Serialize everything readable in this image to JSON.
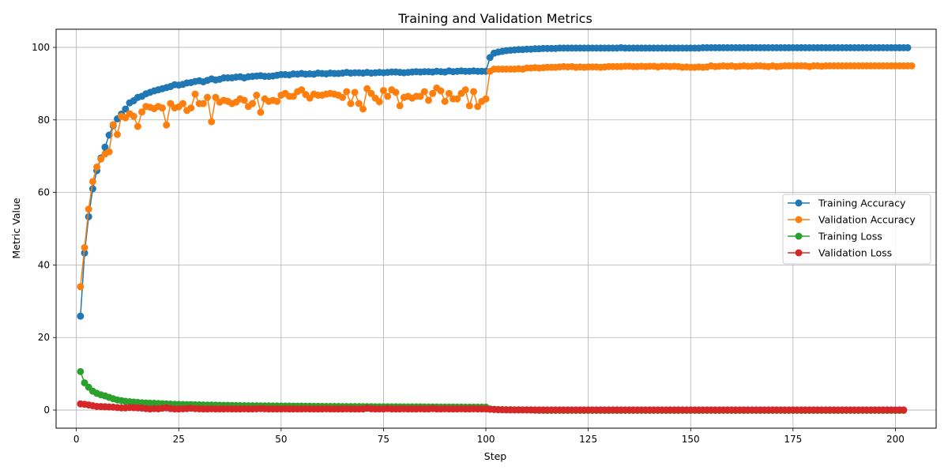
{
  "chart_data": {
    "type": "line",
    "title": "Training and Validation Metrics",
    "xlabel": "Step",
    "ylabel": "Metric Value",
    "xlim": [
      -4.95,
      209.95
    ],
    "ylim": [
      -5,
      105
    ],
    "xticks": [
      0,
      25,
      50,
      75,
      100,
      125,
      150,
      175,
      200
    ],
    "yticks": [
      0,
      20,
      40,
      60,
      80,
      100
    ],
    "grid": true,
    "legend_position": "center-right",
    "x_range": [
      1,
      200
    ],
    "series": [
      {
        "name": "Training Accuracy",
        "color": "#1f77b4",
        "values": [
          25.9,
          43.3,
          53.3,
          61.0,
          66.0,
          69.5,
          72.5,
          75.8,
          78.4,
          80.3,
          81.6,
          83.0,
          84.7,
          85.3,
          86.2,
          86.5,
          87.2,
          87.6,
          88.0,
          88.3,
          88.6,
          88.9,
          89.2,
          89.7,
          89.6,
          89.8,
          90.2,
          90.3,
          90.6,
          90.8,
          90.5,
          90.9,
          91.3,
          91.0,
          91.2,
          91.6,
          91.6,
          91.6,
          91.8,
          91.9,
          91.6,
          91.9,
          92.0,
          92.1,
          92.2,
          92.0,
          92.0,
          92.1,
          92.3,
          92.5,
          92.5,
          92.4,
          92.7,
          92.6,
          92.8,
          92.6,
          92.7,
          92.6,
          92.9,
          92.8,
          92.7,
          92.9,
          92.8,
          92.8,
          92.9,
          93.1,
          92.9,
          93.0,
          93.0,
          92.9,
          93.1,
          92.9,
          93.0,
          93.1,
          93.0,
          93.1,
          93.2,
          93.2,
          93.1,
          93.0,
          93.1,
          93.2,
          93.3,
          93.2,
          93.3,
          93.3,
          93.2,
          93.4,
          93.3,
          93.2,
          93.5,
          93.3,
          93.4,
          93.5,
          93.4,
          93.4,
          93.5,
          93.4,
          93.4,
          93.4,
          97.2,
          98.4,
          98.7,
          98.9,
          99.1,
          99.2,
          99.3,
          99.4,
          99.4,
          99.5,
          99.5,
          99.6,
          99.6,
          99.7,
          99.7,
          99.7,
          99.7,
          99.8,
          99.8,
          99.8,
          99.8,
          99.8,
          99.8,
          99.8,
          99.8,
          99.8,
          99.8,
          99.8,
          99.8,
          99.8,
          99.8,
          99.8,
          99.9,
          99.8,
          99.8,
          99.8,
          99.8,
          99.8,
          99.8,
          99.8,
          99.8,
          99.8,
          99.8,
          99.8,
          99.8,
          99.8,
          99.8,
          99.8,
          99.8,
          99.8,
          99.8,
          99.8,
          99.9,
          99.9,
          99.9,
          99.9,
          99.9,
          99.9,
          99.9,
          99.9,
          99.9,
          99.9,
          99.9,
          99.9,
          99.9,
          99.9,
          99.9,
          99.9,
          99.9,
          99.9,
          99.9,
          99.9,
          99.9,
          99.9,
          99.9,
          99.9,
          99.9,
          99.9,
          99.9,
          99.9,
          99.9,
          99.9,
          99.9,
          99.9,
          99.9,
          99.9,
          99.9,
          99.9,
          99.9,
          99.9,
          99.9,
          99.9,
          99.9,
          99.9,
          99.9,
          99.9,
          99.9,
          99.9,
          99.9,
          99.9,
          99.9,
          99.9,
          99.9
        ]
      },
      {
        "name": "Validation Accuracy",
        "color": "#ff7f0e",
        "values": [
          34.0,
          44.8,
          55.4,
          63.0,
          67.0,
          69.2,
          70.6,
          71.2,
          78.7,
          76.0,
          81.0,
          80.6,
          81.7,
          81.0,
          78.2,
          82.2,
          83.7,
          83.5,
          83.1,
          83.7,
          83.3,
          78.6,
          84.5,
          83.3,
          83.6,
          84.5,
          82.6,
          83.3,
          87.1,
          84.5,
          84.5,
          86.2,
          79.5,
          86.2,
          84.9,
          85.4,
          85.1,
          84.5,
          84.9,
          85.8,
          85.4,
          83.7,
          84.5,
          86.8,
          82.1,
          85.8,
          85.1,
          85.4,
          85.1,
          86.8,
          87.3,
          86.5,
          86.5,
          87.8,
          88.3,
          87.0,
          86.0,
          87.1,
          86.8,
          86.8,
          87.1,
          87.3,
          87.1,
          86.8,
          86.2,
          87.8,
          84.5,
          87.6,
          84.5,
          83.0,
          88.6,
          87.3,
          86.0,
          85.0,
          88.1,
          86.5,
          88.3,
          87.6,
          83.9,
          86.2,
          86.5,
          86.0,
          86.5,
          86.5,
          87.8,
          85.4,
          87.3,
          88.8,
          88.0,
          85.1,
          87.3,
          85.8,
          85.8,
          87.3,
          88.3,
          83.9,
          87.8,
          83.7,
          85.1,
          85.8,
          93.4,
          94.0,
          94.0,
          94.0,
          94.0,
          94.0,
          94.0,
          94.1,
          94.0,
          94.3,
          94.3,
          94.4,
          94.3,
          94.4,
          94.5,
          94.5,
          94.5,
          94.6,
          94.7,
          94.6,
          94.7,
          94.5,
          94.6,
          94.5,
          94.6,
          94.6,
          94.6,
          94.5,
          94.6,
          94.7,
          94.7,
          94.7,
          94.7,
          94.8,
          94.8,
          94.7,
          94.7,
          94.8,
          94.7,
          94.8,
          94.8,
          94.6,
          94.8,
          94.8,
          94.7,
          94.8,
          94.7,
          94.5,
          94.6,
          94.5,
          94.5,
          94.6,
          94.5,
          94.6,
          94.9,
          94.7,
          94.8,
          94.9,
          94.8,
          94.9,
          94.7,
          94.8,
          94.9,
          94.8,
          94.8,
          94.9,
          94.9,
          94.8,
          94.7,
          94.9,
          94.7,
          94.8,
          94.9,
          94.9,
          94.9,
          94.9,
          94.9,
          94.9,
          94.7,
          94.9,
          94.9,
          94.8,
          94.9,
          94.9,
          94.9,
          94.9,
          94.9,
          94.9,
          94.9,
          94.9,
          94.9,
          94.9,
          94.9,
          94.9,
          94.9,
          94.9,
          94.9,
          94.9,
          94.9,
          94.9,
          94.9,
          94.9,
          94.9,
          94.9
        ]
      },
      {
        "name": "Training Loss",
        "color": "#2ca02c",
        "values": [
          10.6,
          7.5,
          6.3,
          5.2,
          4.6,
          4.2,
          3.9,
          3.5,
          3.1,
          2.8,
          2.6,
          2.4,
          2.3,
          2.2,
          2.1,
          2.0,
          1.95,
          1.9,
          1.85,
          1.8,
          1.75,
          1.7,
          1.65,
          1.6,
          1.57,
          1.54,
          1.5,
          1.47,
          1.44,
          1.42,
          1.4,
          1.38,
          1.36,
          1.34,
          1.32,
          1.3,
          1.28,
          1.26,
          1.24,
          1.22,
          1.2,
          1.19,
          1.18,
          1.17,
          1.16,
          1.15,
          1.14,
          1.13,
          1.12,
          1.11,
          1.1,
          1.09,
          1.08,
          1.07,
          1.06,
          1.05,
          1.04,
          1.03,
          1.02,
          1.01,
          1.0,
          1.0,
          0.99,
          0.98,
          0.97,
          0.96,
          0.96,
          0.95,
          0.95,
          0.94,
          0.93,
          0.93,
          0.92,
          0.92,
          0.91,
          0.91,
          0.9,
          0.9,
          0.89,
          0.89,
          0.88,
          0.88,
          0.87,
          0.87,
          0.86,
          0.86,
          0.85,
          0.85,
          0.84,
          0.84,
          0.83,
          0.83,
          0.82,
          0.82,
          0.81,
          0.81,
          0.8,
          0.8,
          0.79,
          0.79,
          0.3,
          0.2,
          0.15,
          0.12,
          0.1,
          0.08,
          0.07,
          0.06,
          0.05,
          0.04,
          0.03,
          -0.05,
          -0.08,
          -0.1,
          -0.1,
          -0.1,
          -0.1,
          -0.1,
          -0.1,
          -0.1,
          -0.1,
          -0.1,
          -0.1,
          -0.1,
          -0.1,
          -0.1,
          -0.1,
          -0.1,
          -0.1,
          -0.1,
          -0.1,
          -0.1,
          -0.1,
          -0.1,
          -0.1,
          -0.1,
          -0.1,
          -0.1,
          -0.1,
          -0.1,
          -0.1,
          -0.1,
          -0.1,
          -0.1,
          -0.1,
          -0.1,
          -0.1,
          -0.1,
          -0.1,
          -0.1,
          -0.1,
          -0.1,
          -0.1,
          -0.1,
          -0.1,
          -0.1,
          -0.1,
          -0.1,
          -0.1,
          -0.1,
          -0.1,
          -0.1,
          -0.1,
          -0.1,
          -0.1,
          -0.1,
          -0.1,
          -0.1,
          -0.1,
          -0.1,
          -0.1,
          -0.1,
          -0.1,
          -0.1,
          -0.1,
          -0.1,
          -0.1,
          -0.1,
          -0.1,
          -0.1,
          -0.1,
          -0.1,
          -0.1,
          -0.1,
          -0.1,
          -0.1,
          -0.1,
          -0.1,
          -0.1,
          -0.1,
          -0.1,
          -0.1,
          -0.1,
          -0.1,
          -0.1,
          -0.1,
          -0.1,
          -0.1,
          -0.1,
          -0.1,
          -0.1,
          -0.1
        ]
      },
      {
        "name": "Validation Loss",
        "color": "#d62728",
        "values": [
          1.7,
          1.6,
          1.4,
          1.2,
          1.0,
          0.95,
          0.9,
          0.85,
          0.8,
          0.7,
          0.6,
          0.6,
          0.7,
          0.65,
          0.6,
          0.55,
          0.4,
          0.3,
          0.4,
          0.35,
          0.5,
          0.6,
          0.4,
          0.3,
          0.3,
          0.35,
          0.4,
          0.5,
          0.4,
          0.35,
          0.3,
          0.3,
          0.35,
          0.3,
          0.3,
          0.3,
          0.35,
          0.3,
          0.3,
          0.3,
          0.35,
          0.3,
          0.3,
          0.35,
          0.4,
          0.35,
          0.3,
          0.3,
          0.3,
          0.3,
          0.35,
          0.3,
          0.3,
          0.3,
          0.3,
          0.35,
          0.3,
          0.3,
          0.3,
          0.3,
          0.35,
          0.3,
          0.3,
          0.3,
          0.3,
          0.35,
          0.3,
          0.3,
          0.3,
          0.3,
          0.5,
          0.35,
          0.3,
          0.3,
          0.3,
          0.4,
          0.3,
          0.3,
          0.3,
          0.35,
          0.3,
          0.3,
          0.3,
          0.35,
          0.3,
          0.3,
          0.4,
          0.3,
          0.3,
          0.35,
          0.3,
          0.3,
          0.3,
          0.35,
          0.3,
          0.3,
          0.35,
          0.3,
          0.3,
          0.3,
          0.2,
          0.15,
          0.1,
          0.08,
          0.06,
          0.05,
          0.05,
          0.04,
          0.04,
          0.04,
          0.03,
          0.03,
          0.03,
          0.03,
          0.03,
          0.03,
          0.03,
          0.03,
          0.03,
          0.03,
          0.03,
          0.03,
          0.03,
          0.03,
          0.03,
          0.03,
          0.03,
          0.03,
          0.03,
          0.03,
          0.03,
          0.03,
          0.03,
          0.03,
          0.03,
          0.03,
          0.03,
          0.03,
          0.03,
          0.03,
          0.03,
          0.03,
          0.03,
          0.03,
          0.03,
          0.03,
          0.03,
          0.03,
          0.03,
          0.03,
          0.03,
          0.03,
          0.03,
          0.03,
          0.03,
          0.03,
          0.03,
          0.03,
          0.03,
          0.03,
          0.03,
          0.03,
          0.03,
          0.03,
          0.03,
          0.03,
          0.03,
          0.03,
          0.03,
          0.03,
          0.03,
          0.03,
          0.03,
          0.03,
          0.03,
          0.03,
          0.03,
          0.03,
          0.03,
          0.03,
          0.03,
          0.03,
          0.03,
          0.03,
          0.03,
          0.03,
          0.03,
          0.03,
          0.03,
          0.03,
          0.03,
          0.03,
          0.03,
          0.03,
          0.03,
          0.03,
          0.03,
          0.03,
          0.03,
          0.03,
          0.03,
          0.03
        ]
      }
    ]
  }
}
